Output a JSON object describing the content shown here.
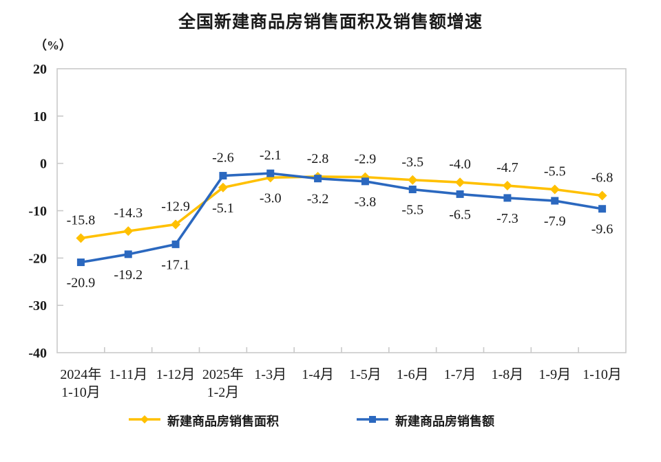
{
  "header": {
    "title": "全国新建商品房销售面积及销售额增速"
  },
  "chart_data": {
    "type": "line",
    "title": "全国新建商品房销售面积及销售额增速",
    "unit_label": "（%）",
    "categories": [
      [
        "2024年",
        "1-10月"
      ],
      [
        "1-11月"
      ],
      [
        "1-12月"
      ],
      [
        "2025年",
        "1-2月"
      ],
      [
        "1-3月"
      ],
      [
        "1-4月"
      ],
      [
        "1-5月"
      ],
      [
        "1-6月"
      ],
      [
        "1-7月"
      ],
      [
        "1-8月"
      ],
      [
        "1-9月"
      ],
      [
        "1-10月"
      ]
    ],
    "y_axis": {
      "min": -40,
      "max": 20,
      "step": 10,
      "ticks": [
        20,
        10,
        0,
        -10,
        -20,
        -30,
        -40
      ],
      "unit": "%"
    },
    "series": [
      {
        "name": "新建商品房销售面积",
        "color": "#FFC000",
        "marker": "diamond",
        "values": [
          -15.8,
          -14.3,
          -12.9,
          -5.1,
          -3.0,
          -2.8,
          -2.9,
          -3.5,
          -4.0,
          -4.7,
          -5.5,
          -6.8
        ],
        "label_positions": [
          "above",
          "above",
          "above",
          "below",
          "below",
          "above",
          "above",
          "above",
          "above",
          "above",
          "above",
          "above"
        ]
      },
      {
        "name": "新建商品房销售额",
        "color": "#2B68BF",
        "marker": "square",
        "values": [
          -20.9,
          -19.2,
          -17.1,
          -2.6,
          -2.1,
          -3.2,
          -3.8,
          -5.5,
          -6.5,
          -7.3,
          -7.9,
          -9.6
        ],
        "label_positions": [
          "below",
          "below",
          "below",
          "above",
          "above",
          "below",
          "below",
          "below",
          "below",
          "below",
          "below",
          "below"
        ]
      }
    ],
    "legend_position": "bottom",
    "grid": false,
    "colors": {
      "axis": "#C9C9C9",
      "text": "#1A1A1A",
      "background": "#FFFFFF"
    }
  },
  "legend": {
    "items": [
      {
        "label": "新建商品房销售面积",
        "color": "#FFC000",
        "marker": "diamond"
      },
      {
        "label": "新建商品房销售额",
        "color": "#2B68BF",
        "marker": "square"
      }
    ]
  }
}
